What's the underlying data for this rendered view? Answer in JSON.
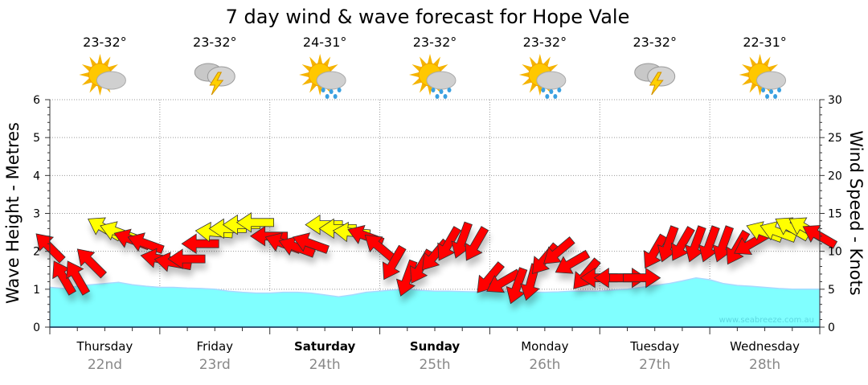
{
  "chart_data": {
    "type": "line",
    "title": "7 day wind & wave forecast for Hope Vale",
    "ylabel": "Wave Height - Metres",
    "y2label": "Wind Speed - Knots",
    "ylim": [
      0,
      6
    ],
    "y2lim": [
      0,
      30
    ],
    "yticks": [
      "0",
      "1",
      "2",
      "3",
      "4",
      "5",
      "6"
    ],
    "y2ticks": [
      "0",
      "5",
      "10",
      "15",
      "20",
      "25",
      "30"
    ],
    "grid": true,
    "watermark": "www.seabreeze.com.au",
    "days": [
      {
        "day": "Thursday",
        "date": "22nd",
        "temp": "23-32°",
        "icon": "partly-cloudy-icon",
        "bold": false
      },
      {
        "day": "Friday",
        "date": "23rd",
        "temp": "23-32°",
        "icon": "thunderstorm-icon",
        "bold": false
      },
      {
        "day": "Saturday",
        "date": "24th",
        "temp": "24-31°",
        "icon": "sun-showers-icon",
        "bold": true
      },
      {
        "day": "Sunday",
        "date": "25th",
        "temp": "23-32°",
        "icon": "sun-showers-icon",
        "bold": true
      },
      {
        "day": "Monday",
        "date": "26th",
        "temp": "23-32°",
        "icon": "sun-showers-icon",
        "bold": false
      },
      {
        "day": "Tuesday",
        "date": "27th",
        "temp": "23-32°",
        "icon": "thunderstorm-icon",
        "bold": false
      },
      {
        "day": "Wednesday",
        "date": "28th",
        "temp": "22-31°",
        "icon": "sun-showers-icon",
        "bold": false
      }
    ],
    "x_unit": "hours from start (3-hourly)",
    "series": [
      {
        "name": "Wave height (m)",
        "type": "area",
        "color": "#80FFFF",
        "values": [
          1.05,
          1.02,
          1.08,
          1.12,
          1.15,
          1.18,
          1.12,
          1.08,
          1.05,
          1.05,
          1.03,
          1.02,
          1.0,
          0.95,
          0.92,
          0.9,
          0.9,
          0.92,
          0.92,
          0.9,
          0.85,
          0.8,
          0.85,
          0.92,
          0.95,
          0.98,
          1.0,
          0.97,
          0.95,
          0.95,
          0.94,
          0.93,
          0.95,
          0.95,
          0.93,
          0.92,
          0.92,
          0.93,
          0.95,
          0.95,
          0.95,
          0.98,
          1.0,
          1.05,
          1.1,
          1.15,
          1.22,
          1.3,
          1.25,
          1.15,
          1.1,
          1.08,
          1.05,
          1.02,
          1.0,
          1.0,
          1.0
        ]
      },
      {
        "name": "Wind speed (knots)",
        "type": "arrows",
        "values": [
          10.5,
          6.5,
          6.5,
          8.5,
          13,
          12.5,
          11.5,
          11,
          9,
          8.5,
          9,
          11,
          12.5,
          13,
          13.5,
          13.8,
          12,
          11,
          10.5,
          11,
          13.5,
          13,
          12.5,
          12,
          10.5,
          8.5,
          6.5,
          8,
          9.5,
          11,
          11.5,
          11,
          6.5,
          6,
          5.5,
          6,
          9,
          10,
          8.5,
          7,
          6.5,
          6.5,
          6.5,
          6.5,
          10,
          11,
          11,
          11,
          11,
          11,
          10.5,
          11,
          12.5,
          12.5,
          13,
          13,
          12
        ],
        "direction_from_deg": [
          135,
          150,
          150,
          135,
          120,
          110,
          110,
          110,
          100,
          100,
          90,
          90,
          95,
          90,
          90,
          90,
          90,
          110,
          110,
          110,
          90,
          90,
          95,
          110,
          130,
          30,
          20,
          30,
          40,
          30,
          20,
          30,
          40,
          60,
          20,
          15,
          40,
          50,
          60,
          40,
          90,
          90,
          270,
          270,
          30,
          20,
          30,
          20,
          20,
          20,
          30,
          60,
          110,
          110,
          120,
          120,
          120
        ],
        "color_strong": "#FFFF00",
        "color_light": "#FF0000",
        "strong_threshold_knots": 12.2
      }
    ]
  }
}
